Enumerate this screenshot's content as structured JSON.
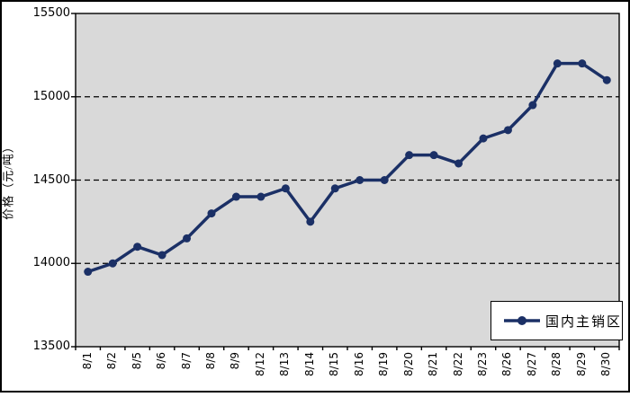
{
  "chart_data": {
    "type": "line",
    "title": "",
    "xlabel": "",
    "ylabel": "价格（元/吨）",
    "categories": [
      "8/1",
      "8/2",
      "8/5",
      "8/6",
      "8/7",
      "8/8",
      "8/9",
      "8/12",
      "8/13",
      "8/14",
      "8/15",
      "8/16",
      "8/19",
      "8/20",
      "8/21",
      "8/22",
      "8/23",
      "8/26",
      "8/27",
      "8/28",
      "8/29",
      "8/30"
    ],
    "series": [
      {
        "name": "国内主销区",
        "values": [
          13950,
          14000,
          14100,
          14050,
          14150,
          14300,
          14400,
          14400,
          14450,
          14250,
          14450,
          14500,
          14500,
          14650,
          14650,
          14600,
          14750,
          14800,
          14950,
          15200,
          15200,
          15100
        ]
      }
    ],
    "ylim": [
      13500,
      15500
    ],
    "yticks": [
      "13500",
      "14000",
      "14500",
      "15000",
      "15500"
    ],
    "ytick_values": [
      13500,
      14000,
      14500,
      15000,
      15500
    ],
    "grid": "horizontal dashed lines at 14000, 14500, 15000",
    "legend_position": "inside plot, bottom-right",
    "colors": {
      "line": "#1b3066",
      "marker": "#1b3066",
      "plot_background": "#d9d9d9",
      "gridline": "#000000",
      "axis": "#000000",
      "text": "#000000",
      "legend_background": "#ffffff",
      "page_background": "#ffffff"
    }
  }
}
